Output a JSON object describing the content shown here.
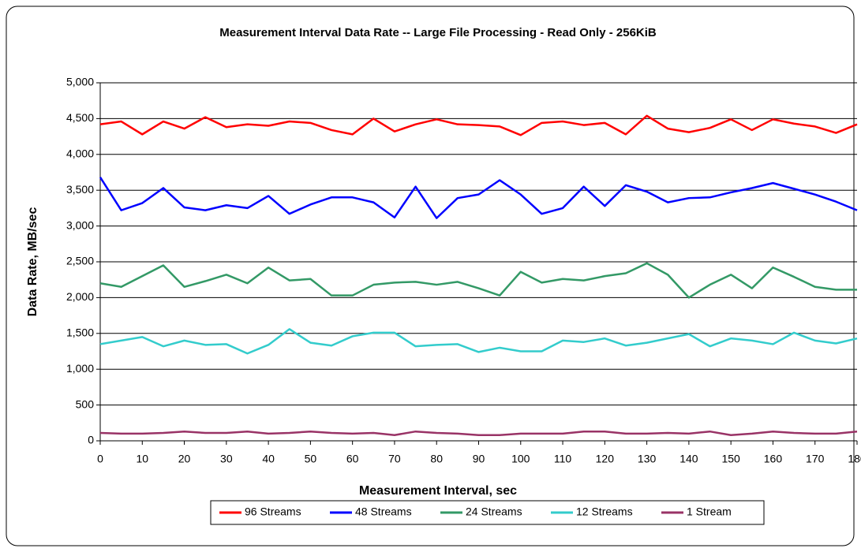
{
  "chart_data": {
    "type": "line",
    "title": "Measurement Interval Data Rate -- Large File Processing - Read Only - 256KiB",
    "x_label": "Measurement Interval, sec",
    "y_label": "Data Rate, MB/sec",
    "x": [
      0,
      5,
      10,
      15,
      20,
      25,
      30,
      35,
      40,
      45,
      50,
      55,
      60,
      65,
      70,
      75,
      80,
      85,
      90,
      95,
      100,
      105,
      110,
      115,
      120,
      125,
      130,
      135,
      140,
      145,
      150,
      155,
      160,
      165,
      170,
      175,
      180
    ],
    "series": [
      {
        "name": "96 Streams",
        "color": "#ff0000",
        "values": [
          4420,
          4460,
          4280,
          4460,
          4360,
          4520,
          4380,
          4420,
          4400,
          4460,
          4440,
          4340,
          4280,
          4500,
          4320,
          4420,
          4490,
          4420,
          4410,
          4390,
          4270,
          4440,
          4460,
          4410,
          4440,
          4280,
          4540,
          4360,
          4310,
          4370,
          4490,
          4340,
          4490,
          4430,
          4390,
          4300,
          4420
        ]
      },
      {
        "name": "48 Streams",
        "color": "#0000ff",
        "values": [
          3680,
          3220,
          3320,
          3530,
          3260,
          3220,
          3290,
          3250,
          3420,
          3170,
          3300,
          3400,
          3400,
          3330,
          3120,
          3550,
          3110,
          3390,
          3440,
          3640,
          3440,
          3170,
          3250,
          3550,
          3280,
          3570,
          3480,
          3330,
          3390,
          3400,
          3470,
          3530,
          3600,
          3520,
          3440,
          3340,
          3220
        ]
      },
      {
        "name": "24 Streams",
        "color": "#339966",
        "values": [
          2200,
          2150,
          2300,
          2450,
          2150,
          2230,
          2320,
          2200,
          2420,
          2240,
          2260,
          2030,
          2030,
          2180,
          2210,
          2220,
          2180,
          2220,
          2130,
          2030,
          2360,
          2210,
          2260,
          2240,
          2300,
          2340,
          2480,
          2320,
          2000,
          2180,
          2320,
          2130,
          2420,
          2290,
          2150,
          2110,
          2110
        ]
      },
      {
        "name": "12 Streams",
        "color": "#33cccc",
        "values": [
          1350,
          1400,
          1450,
          1320,
          1400,
          1340,
          1350,
          1220,
          1340,
          1560,
          1370,
          1330,
          1460,
          1510,
          1510,
          1320,
          1340,
          1350,
          1240,
          1300,
          1250,
          1250,
          1400,
          1380,
          1430,
          1330,
          1370,
          1430,
          1490,
          1320,
          1430,
          1400,
          1350,
          1510,
          1400,
          1360,
          1430
        ]
      },
      {
        "name": "1 Stream",
        "color": "#993366",
        "values": [
          110,
          100,
          100,
          110,
          130,
          110,
          110,
          130,
          100,
          110,
          130,
          110,
          100,
          110,
          80,
          130,
          110,
          100,
          80,
          80,
          100,
          100,
          100,
          130,
          130,
          100,
          100,
          110,
          100,
          130,
          80,
          100,
          130,
          110,
          100,
          100,
          130
        ]
      }
    ],
    "xlim": [
      0,
      180
    ],
    "xticks": [
      0,
      10,
      20,
      30,
      40,
      50,
      60,
      70,
      80,
      90,
      100,
      110,
      120,
      130,
      140,
      150,
      160,
      170,
      180
    ],
    "ylim": [
      0,
      5000
    ],
    "yticks": [
      0,
      500,
      {
        "value": 1000,
        "label": "1,000"
      },
      {
        "value": 1500,
        "label": "1,500"
      },
      {
        "value": 2000,
        "label": "2,000"
      },
      {
        "value": 2500,
        "label": "2,500"
      },
      {
        "value": 3000,
        "label": "3,000"
      },
      {
        "value": 3500,
        "label": "3,500"
      },
      {
        "value": 4000,
        "label": "4,000"
      },
      {
        "value": 4500,
        "label": "4,500"
      },
      {
        "value": 5000,
        "label": "5,000"
      }
    ],
    "grid": true,
    "legend": "bottom"
  }
}
